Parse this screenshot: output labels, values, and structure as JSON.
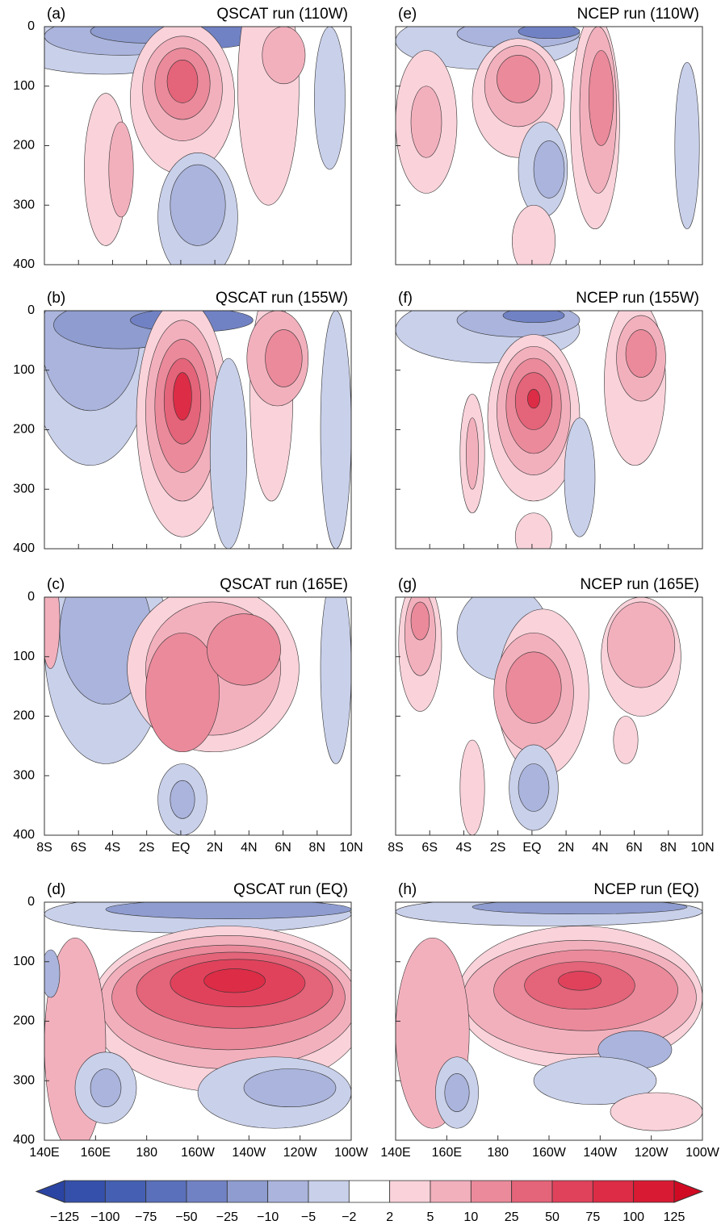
{
  "chart_data": [
    {
      "type": "contour",
      "label": "(a)",
      "title": "QSCAT run (110W)",
      "xlim": [
        -8,
        10
      ],
      "xticks": [
        -8,
        -6,
        -4,
        -2,
        0,
        2,
        4,
        6,
        8,
        10
      ],
      "xtick_labels": false,
      "ylim": [
        0,
        400
      ],
      "yticks": [
        0,
        100,
        200,
        300,
        400
      ],
      "ytick_labels": true,
      "yaxis_inverted": true
    },
    {
      "type": "contour",
      "label": "(b)",
      "title": "QSCAT run (155W)",
      "xlim": [
        -8,
        10
      ],
      "xticks": [
        -8,
        -6,
        -4,
        -2,
        0,
        2,
        4,
        6,
        8,
        10
      ],
      "xtick_labels": false,
      "ylim": [
        0,
        400
      ],
      "yticks": [
        0,
        100,
        200,
        300,
        400
      ],
      "ytick_labels": true,
      "yaxis_inverted": true
    },
    {
      "type": "contour",
      "label": "(c)",
      "title": "QSCAT run (165E)",
      "xlim": [
        -8,
        10
      ],
      "xticks": [
        {
          "value": -8,
          "label": "8S"
        },
        {
          "value": -6,
          "label": "6S"
        },
        {
          "value": -4,
          "label": "4S"
        },
        {
          "value": -2,
          "label": "2S"
        },
        {
          "value": 0,
          "label": "EQ"
        },
        {
          "value": 2,
          "label": "2N"
        },
        {
          "value": 4,
          "label": "4N"
        },
        {
          "value": 6,
          "label": "6N"
        },
        {
          "value": 8,
          "label": "8N"
        },
        {
          "value": 10,
          "label": "10N"
        }
      ],
      "xtick_labels": true,
      "ylim": [
        0,
        400
      ],
      "yticks": [
        0,
        100,
        200,
        300,
        400
      ],
      "ytick_labels": true,
      "yaxis_inverted": true
    },
    {
      "type": "contour",
      "label": "(d)",
      "title": "QSCAT run (EQ)",
      "xlim": [
        140,
        260
      ],
      "xticks": [
        {
          "value": 140,
          "label": "140E"
        },
        {
          "value": 160,
          "label": "160E"
        },
        180,
        {
          "value": 200,
          "label": "160W"
        },
        {
          "value": 220,
          "label": "140W"
        },
        {
          "value": 240,
          "label": "120W"
        },
        {
          "value": 260,
          "label": "100W"
        }
      ],
      "xtick_labels": true,
      "ylim": [
        0,
        400
      ],
      "yticks": [
        0,
        100,
        200,
        300,
        400
      ],
      "ytick_labels": true,
      "yaxis_inverted": true
    },
    {
      "type": "contour",
      "label": "(e)",
      "title": "NCEP run (110W)",
      "xlim": [
        -8,
        10
      ],
      "xticks": [
        -8,
        -6,
        -4,
        -2,
        0,
        2,
        4,
        6,
        8,
        10
      ],
      "xtick_labels": false,
      "ylim": [
        0,
        400
      ],
      "yticks": [
        0,
        100,
        200,
        300,
        400
      ],
      "ytick_labels": false,
      "yaxis_inverted": true
    },
    {
      "type": "contour",
      "label": "(f)",
      "title": "NCEP run (155W)",
      "xlim": [
        -8,
        10
      ],
      "xticks": [
        -8,
        -6,
        -4,
        -2,
        0,
        2,
        4,
        6,
        8,
        10
      ],
      "xtick_labels": false,
      "ylim": [
        0,
        400
      ],
      "yticks": [
        0,
        100,
        200,
        300,
        400
      ],
      "ytick_labels": false,
      "yaxis_inverted": true
    },
    {
      "type": "contour",
      "label": "(g)",
      "title": "NCEP run (165E)",
      "xlim": [
        -8,
        10
      ],
      "xticks": [
        {
          "value": -8,
          "label": "8S"
        },
        {
          "value": -6,
          "label": "6S"
        },
        {
          "value": -4,
          "label": "4S"
        },
        {
          "value": -2,
          "label": "2S"
        },
        {
          "value": 0,
          "label": "EQ"
        },
        {
          "value": 2,
          "label": "2N"
        },
        {
          "value": 4,
          "label": "4N"
        },
        {
          "value": 6,
          "label": "6N"
        },
        {
          "value": 8,
          "label": "8N"
        },
        {
          "value": 10,
          "label": "10N"
        }
      ],
      "xtick_labels": true,
      "ylim": [
        0,
        400
      ],
      "yticks": [
        0,
        100,
        200,
        300,
        400
      ],
      "ytick_labels": false,
      "yaxis_inverted": true
    },
    {
      "type": "contour",
      "label": "(h)",
      "title": "NCEP run (EQ)",
      "xlim": [
        140,
        260
      ],
      "xticks": [
        {
          "value": 140,
          "label": "140E"
        },
        {
          "value": 160,
          "label": "160E"
        },
        180,
        {
          "value": 200,
          "label": "160W"
        },
        {
          "value": 220,
          "label": "140W"
        },
        {
          "value": 240,
          "label": "120W"
        },
        {
          "value": 260,
          "label": "100W"
        }
      ],
      "xtick_labels": true,
      "ylim": [
        0,
        400
      ],
      "yticks": [
        0,
        100,
        200,
        300,
        400
      ],
      "ytick_labels": false,
      "yaxis_inverted": true
    },
    {
      "type": "colorbar",
      "levels": [
        {
          "value": -125,
          "label": "−125"
        },
        {
          "value": -100,
          "label": "−100"
        },
        {
          "value": -75,
          "label": "−75"
        },
        {
          "value": -50,
          "label": "−50"
        },
        {
          "value": -25,
          "label": "−25"
        },
        {
          "value": -10,
          "label": "−10"
        },
        {
          "value": -5,
          "label": "−5"
        },
        {
          "value": -2,
          "label": "−2"
        },
        2,
        5,
        10,
        25,
        50,
        75,
        100,
        125
      ],
      "colors": [
        "#2a44a4",
        "#3550aa",
        "#4560b2",
        "#5a70ba",
        "#7182c4",
        "#8e9ccf",
        "#aab4dc",
        "#c9d0ea",
        "#ffffff",
        "#f9d2da",
        "#f2b0bd",
        "#ea8a9b",
        "#e46479",
        "#e0425c",
        "#dc2c46",
        "#d81a33",
        "#d00a22"
      ]
    }
  ]
}
